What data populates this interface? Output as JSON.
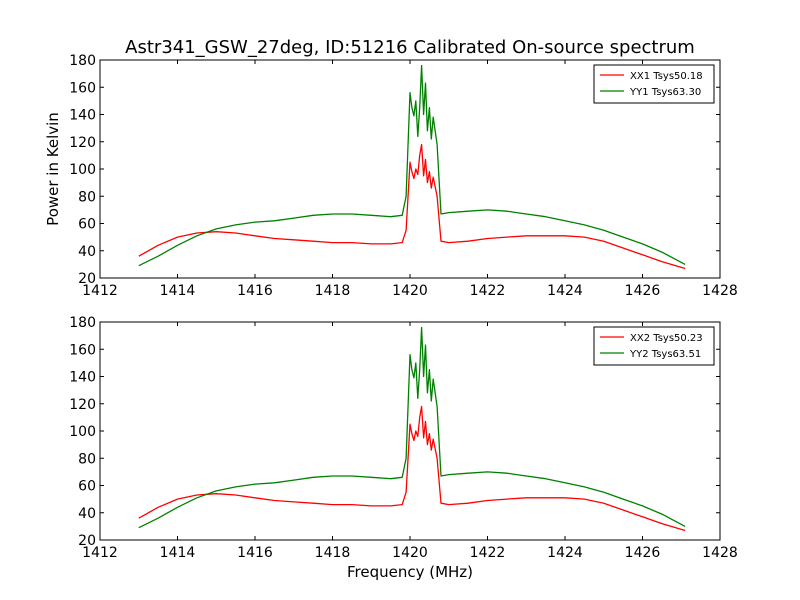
{
  "figure": {
    "title": "Astr341_GSW_27deg, ID:51216 Calibrated On-source spectrum"
  },
  "chart_data": [
    {
      "type": "line",
      "title": "Astr341_GSW_27deg, ID:51216 Calibrated On-source spectrum",
      "xlabel": "",
      "ylabel": "Power in Kelvin",
      "xlim": [
        1412,
        1428
      ],
      "ylim": [
        20,
        180
      ],
      "xticks": [
        "1412",
        "1414",
        "1416",
        "1418",
        "1420",
        "1422",
        "1424",
        "1426",
        "1428"
      ],
      "yticks": [
        "20",
        "40",
        "60",
        "80",
        "100",
        "120",
        "140",
        "160",
        "180"
      ],
      "grid": false,
      "legend": "top-right",
      "series": [
        {
          "name": "XX1 Tsys50.18",
          "color": "#ff0000",
          "x": [
            1413.0,
            1413.5,
            1414.0,
            1414.5,
            1415.0,
            1415.5,
            1416.0,
            1416.5,
            1417.0,
            1417.5,
            1418.0,
            1418.5,
            1419.0,
            1419.5,
            1419.8,
            1419.9,
            1420.0,
            1420.05,
            1420.1,
            1420.15,
            1420.2,
            1420.25,
            1420.3,
            1420.35,
            1420.4,
            1420.45,
            1420.5,
            1420.55,
            1420.6,
            1420.7,
            1420.8,
            1421.0,
            1421.5,
            1422.0,
            1422.5,
            1423.0,
            1423.5,
            1424.0,
            1424.5,
            1425.0,
            1425.5,
            1426.0,
            1426.5,
            1427.1
          ],
          "y": [
            36,
            44,
            50,
            53,
            54,
            53,
            51,
            49,
            48,
            47,
            46,
            46,
            45,
            45,
            46,
            55,
            105,
            98,
            93,
            100,
            96,
            110,
            118,
            95,
            107,
            90,
            98,
            86,
            94,
            80,
            47,
            46,
            47,
            49,
            50,
            51,
            51,
            51,
            50,
            47,
            42,
            37,
            32,
            27
          ]
        },
        {
          "name": "YY1 Tsys63.30",
          "color": "#008000",
          "x": [
            1413.0,
            1413.5,
            1414.0,
            1414.5,
            1415.0,
            1415.5,
            1416.0,
            1416.5,
            1417.0,
            1417.5,
            1418.0,
            1418.5,
            1419.0,
            1419.5,
            1419.8,
            1419.9,
            1420.0,
            1420.05,
            1420.1,
            1420.15,
            1420.2,
            1420.25,
            1420.3,
            1420.35,
            1420.4,
            1420.45,
            1420.5,
            1420.55,
            1420.6,
            1420.7,
            1420.8,
            1421.0,
            1421.5,
            1422.0,
            1422.5,
            1423.0,
            1423.5,
            1424.0,
            1424.5,
            1425.0,
            1425.5,
            1426.0,
            1426.5,
            1427.1
          ],
          "y": [
            29,
            36,
            44,
            51,
            56,
            59,
            61,
            62,
            64,
            66,
            67,
            67,
            66,
            65,
            66,
            80,
            156,
            145,
            139,
            150,
            124,
            145,
            176,
            140,
            163,
            128,
            145,
            122,
            138,
            118,
            67,
            68,
            69,
            70,
            69,
            67,
            65,
            62,
            59,
            55,
            50,
            45,
            39,
            30
          ]
        }
      ]
    },
    {
      "type": "line",
      "title": "",
      "xlabel": "Frequency (MHz)",
      "ylabel": "",
      "xlim": [
        1412,
        1428
      ],
      "ylim": [
        20,
        180
      ],
      "xticks": [
        "1412",
        "1414",
        "1416",
        "1418",
        "1420",
        "1422",
        "1424",
        "1426",
        "1428"
      ],
      "yticks": [
        "20",
        "40",
        "60",
        "80",
        "100",
        "120",
        "140",
        "160",
        "180"
      ],
      "grid": false,
      "legend": "top-right",
      "series": [
        {
          "name": "XX2 Tsys50.23",
          "color": "#ff0000",
          "x": [
            1413.0,
            1413.5,
            1414.0,
            1414.5,
            1415.0,
            1415.5,
            1416.0,
            1416.5,
            1417.0,
            1417.5,
            1418.0,
            1418.5,
            1419.0,
            1419.5,
            1419.8,
            1419.9,
            1420.0,
            1420.05,
            1420.1,
            1420.15,
            1420.2,
            1420.25,
            1420.3,
            1420.35,
            1420.4,
            1420.45,
            1420.5,
            1420.55,
            1420.6,
            1420.7,
            1420.8,
            1421.0,
            1421.5,
            1422.0,
            1422.5,
            1423.0,
            1423.5,
            1424.0,
            1424.5,
            1425.0,
            1425.5,
            1426.0,
            1426.5,
            1427.1
          ],
          "y": [
            36,
            44,
            50,
            53,
            54,
            53,
            51,
            49,
            48,
            47,
            46,
            46,
            45,
            45,
            46,
            55,
            105,
            98,
            93,
            100,
            96,
            110,
            118,
            95,
            107,
            90,
            98,
            86,
            94,
            80,
            47,
            46,
            47,
            49,
            50,
            51,
            51,
            51,
            50,
            47,
            42,
            37,
            32,
            27
          ]
        },
        {
          "name": "YY2 Tsys63.51",
          "color": "#008000",
          "x": [
            1413.0,
            1413.5,
            1414.0,
            1414.5,
            1415.0,
            1415.5,
            1416.0,
            1416.5,
            1417.0,
            1417.5,
            1418.0,
            1418.5,
            1419.0,
            1419.5,
            1419.8,
            1419.9,
            1420.0,
            1420.05,
            1420.1,
            1420.15,
            1420.2,
            1420.25,
            1420.3,
            1420.35,
            1420.4,
            1420.45,
            1420.5,
            1420.55,
            1420.6,
            1420.7,
            1420.8,
            1421.0,
            1421.5,
            1422.0,
            1422.5,
            1423.0,
            1423.5,
            1424.0,
            1424.5,
            1425.0,
            1425.5,
            1426.0,
            1426.5,
            1427.1
          ],
          "y": [
            29,
            36,
            44,
            51,
            56,
            59,
            61,
            62,
            64,
            66,
            67,
            67,
            66,
            65,
            66,
            80,
            156,
            145,
            139,
            150,
            124,
            145,
            176,
            140,
            163,
            128,
            145,
            122,
            138,
            118,
            67,
            68,
            69,
            70,
            69,
            67,
            65,
            62,
            59,
            55,
            50,
            45,
            39,
            30
          ]
        }
      ]
    }
  ]
}
